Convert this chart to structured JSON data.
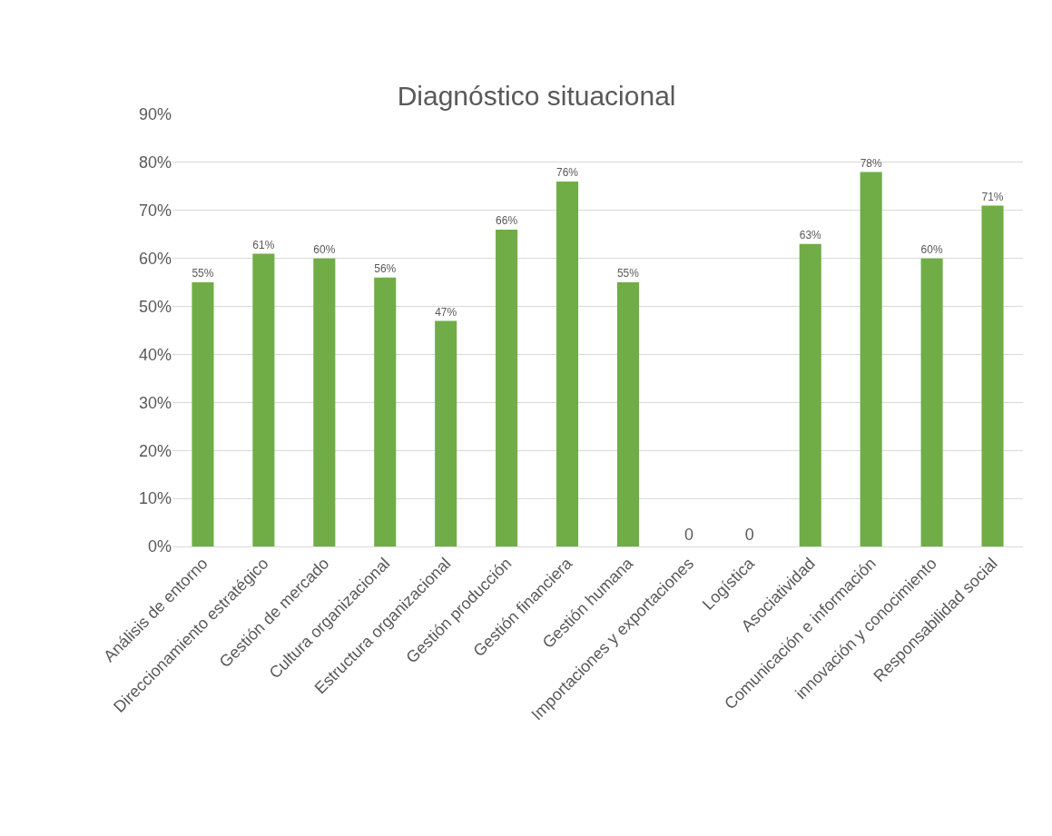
{
  "chart_data": {
    "type": "bar",
    "title": "Diagnóstico situacional",
    "categories": [
      "Análisis de entorno",
      "Direccionamiento estratégico",
      "Gestión de mercado",
      "Cultura organizacional",
      "Estructura organizacional",
      "Gestión producción",
      "Gestión financiera",
      "Gestión humana",
      "Importaciones y exportaciones",
      "Logística",
      "Asociatividad",
      "Comunicación e información",
      "innovación y conocimiento",
      "Responsabilidad social"
    ],
    "values": [
      55,
      61,
      60,
      56,
      47,
      66,
      76,
      55,
      0,
      0,
      63,
      78,
      60,
      71
    ],
    "value_labels": [
      "55%",
      "61%",
      "60%",
      "56%",
      "47%",
      "66%",
      "76%",
      "55%",
      "0",
      "0",
      "63%",
      "78%",
      "60%",
      "71%"
    ],
    "color": "#70ad47",
    "ylim": [
      0,
      90
    ],
    "yticks": [
      {
        "value": 0,
        "label": "0%"
      },
      {
        "value": 10,
        "label": "10%"
      },
      {
        "value": 20,
        "label": "20%"
      },
      {
        "value": 30,
        "label": "30%"
      },
      {
        "value": 40,
        "label": "40%"
      },
      {
        "value": 50,
        "label": "50%"
      },
      {
        "value": 60,
        "label": "60%"
      },
      {
        "value": 70,
        "label": "70%"
      },
      {
        "value": 80,
        "label": "80%"
      },
      {
        "value": 90,
        "label": "90%"
      }
    ],
    "grid": "y",
    "legend": false
  }
}
